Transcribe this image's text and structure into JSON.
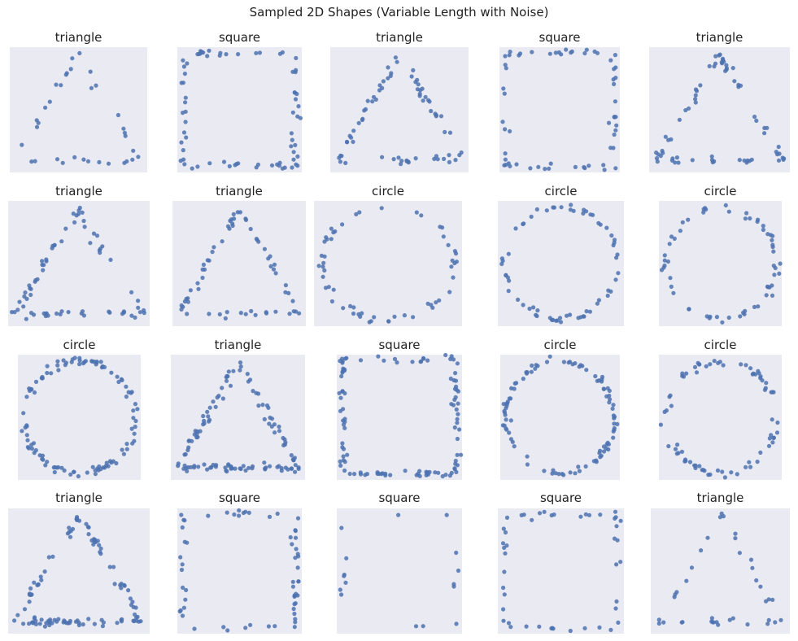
{
  "figure": {
    "title": "Sampled 2D Shapes (Variable Length with Noise)",
    "colors": {
      "axes_bg": "#eaeaf2",
      "point": "#4c72b0"
    }
  },
  "chart_data": [
    {
      "type": "scatter",
      "title": "triangle",
      "shape": "triangle",
      "n_points": 34,
      "grid": false
    },
    {
      "type": "scatter",
      "title": "square",
      "shape": "square",
      "n_points": 72,
      "grid": false
    },
    {
      "type": "scatter",
      "title": "triangle",
      "shape": "triangle",
      "n_points": 70,
      "grid": false
    },
    {
      "type": "scatter",
      "title": "square",
      "shape": "square",
      "n_points": 60,
      "grid": false
    },
    {
      "type": "scatter",
      "title": "triangle",
      "shape": "triangle",
      "n_points": 68,
      "grid": false
    },
    {
      "type": "scatter",
      "title": "triangle",
      "shape": "triangle",
      "n_points": 72,
      "grid": false
    },
    {
      "type": "scatter",
      "title": "triangle",
      "shape": "triangle",
      "n_points": 62,
      "grid": false
    },
    {
      "type": "scatter",
      "title": "circle",
      "shape": "circle",
      "n_points": 56,
      "grid": false
    },
    {
      "type": "scatter",
      "title": "circle",
      "shape": "circle",
      "n_points": 64,
      "grid": false
    },
    {
      "type": "scatter",
      "title": "circle",
      "shape": "circle",
      "n_points": 60,
      "grid": false
    },
    {
      "type": "scatter",
      "title": "circle",
      "shape": "circle",
      "n_points": 110,
      "grid": false
    },
    {
      "type": "scatter",
      "title": "triangle",
      "shape": "triangle",
      "n_points": 120,
      "grid": false
    },
    {
      "type": "scatter",
      "title": "square",
      "shape": "square",
      "n_points": 110,
      "grid": false
    },
    {
      "type": "scatter",
      "title": "circle",
      "shape": "circle",
      "n_points": 98,
      "grid": false
    },
    {
      "type": "scatter",
      "title": "circle",
      "shape": "circle",
      "n_points": 76,
      "grid": false
    },
    {
      "type": "scatter",
      "title": "triangle",
      "shape": "triangle",
      "n_points": 110,
      "grid": false
    },
    {
      "type": "scatter",
      "title": "square",
      "shape": "square",
      "n_points": 60,
      "grid": false
    },
    {
      "type": "scatter",
      "title": "square",
      "shape": "square",
      "n_points": 16,
      "grid": false
    },
    {
      "type": "scatter",
      "title": "square",
      "shape": "square",
      "n_points": 46,
      "grid": false
    },
    {
      "type": "scatter",
      "title": "triangle",
      "shape": "triangle",
      "n_points": 38,
      "grid": false
    }
  ]
}
